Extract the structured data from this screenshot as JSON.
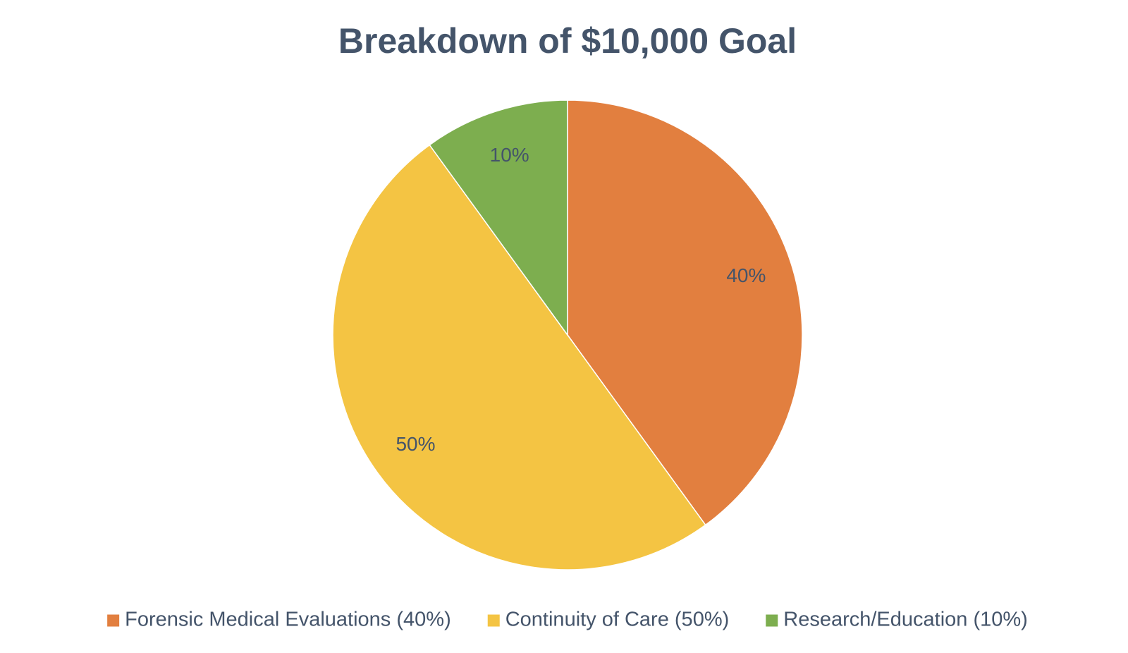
{
  "chart_data": {
    "type": "pie",
    "title": "Breakdown of $10,000 Goal",
    "categories": [
      "Forensic Medical Evaluations (40%)",
      "Continuity of Care (50%)",
      "Research/Education (10%)"
    ],
    "values": [
      40,
      50,
      10
    ],
    "value_labels": [
      "40%",
      "50%",
      "10%"
    ],
    "colors": [
      "#e27f3f",
      "#f4c443",
      "#7dae4f"
    ],
    "legend": "bottom"
  }
}
